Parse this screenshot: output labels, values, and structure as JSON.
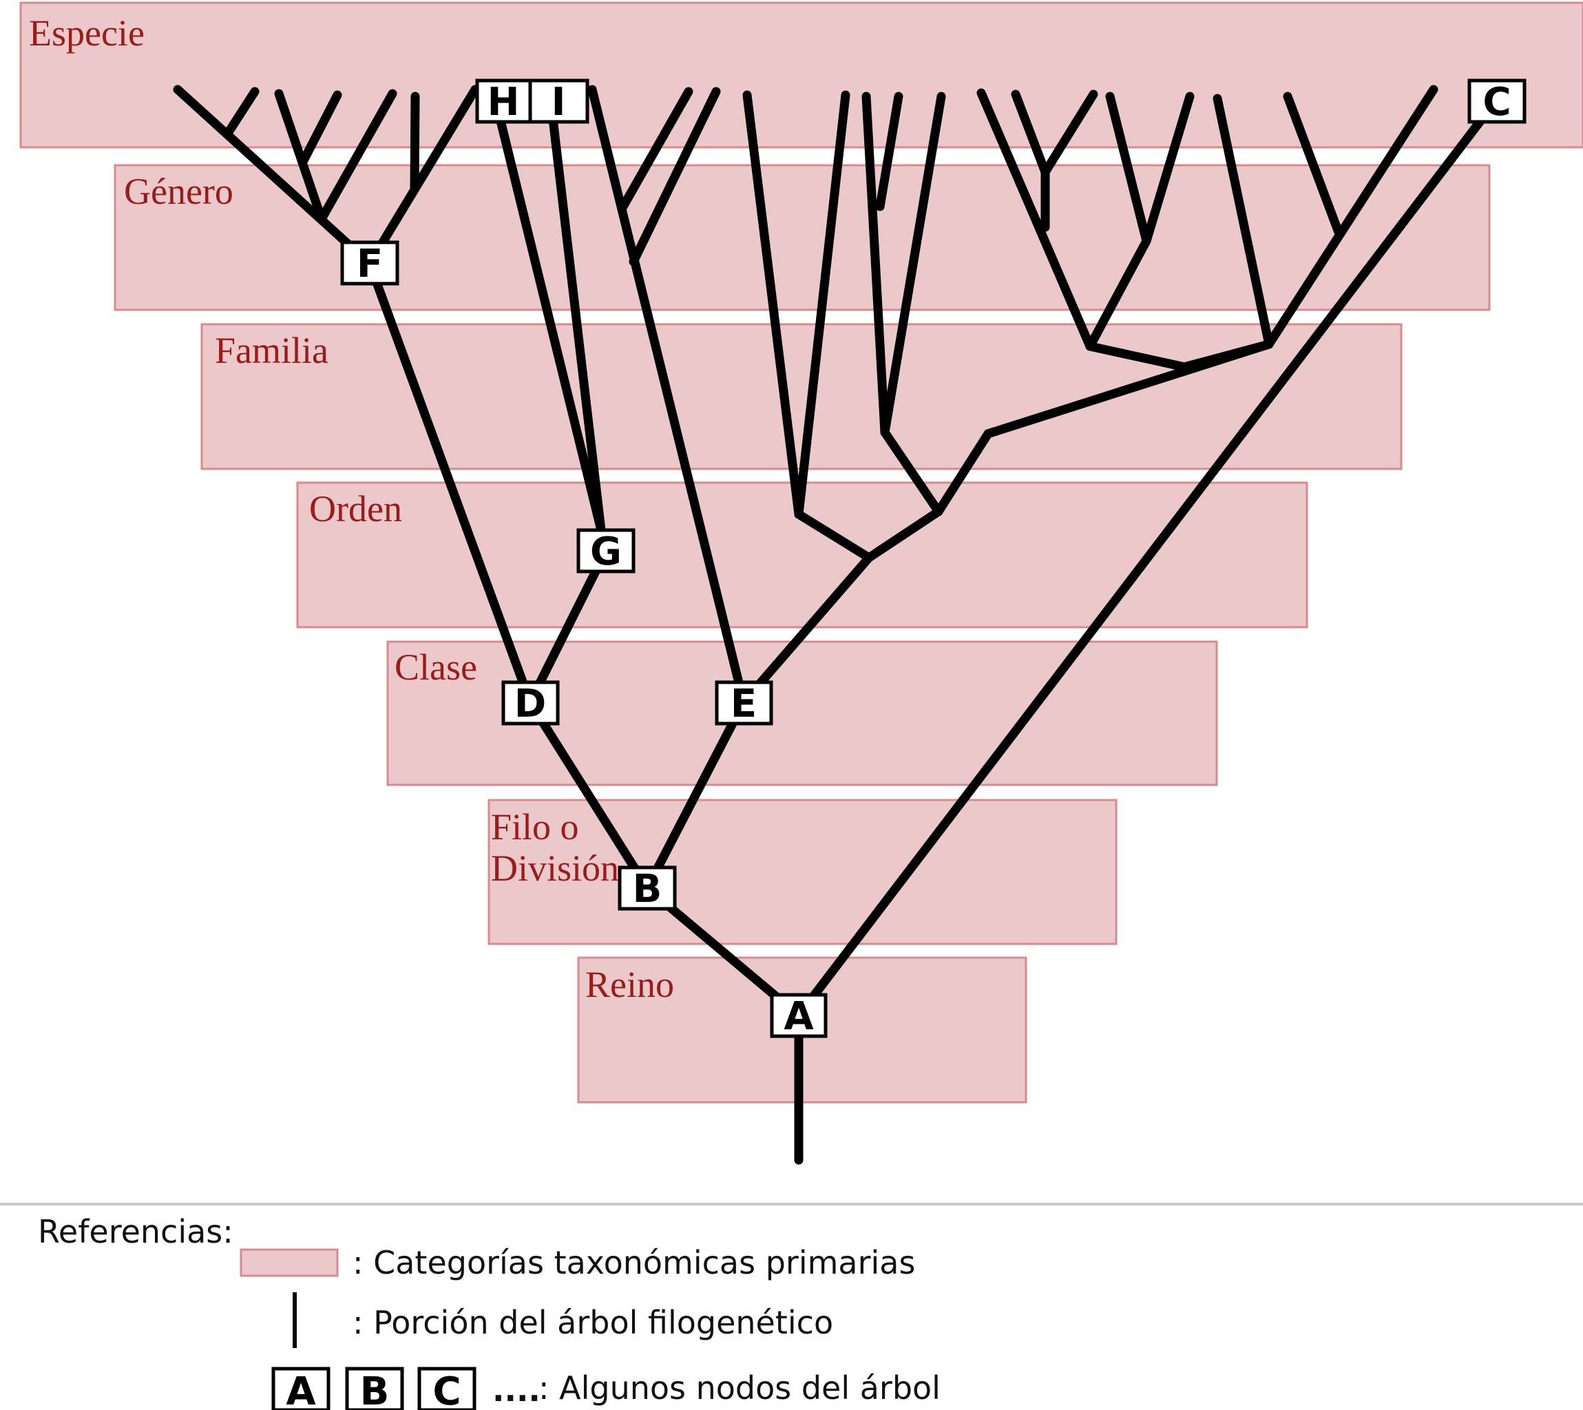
{
  "categories": [
    {
      "id": "especie",
      "label": "Especie"
    },
    {
      "id": "genero",
      "label": "Género"
    },
    {
      "id": "familia",
      "label": "Familia"
    },
    {
      "id": "orden",
      "label": "Orden"
    },
    {
      "id": "clase",
      "label": "Clase"
    },
    {
      "id": "filo",
      "label_line1": "Filo o",
      "label_line2": "División"
    },
    {
      "id": "reino",
      "label": "Reino"
    }
  ],
  "nodes": [
    "A",
    "B",
    "C",
    "D",
    "E",
    "F",
    "G",
    "H",
    "I"
  ],
  "legend": {
    "title": "Referencias:",
    "band_text": ": Categorías taxonómicas primarias",
    "line_text": ": Porción del árbol filogenético",
    "nodes_text": ": Algunos nodos del árbol",
    "sample_nodes": [
      "A",
      "B",
      "C"
    ],
    "ellipsis": "...."
  },
  "colors": {
    "band_fill": "#ebc8ca",
    "band_stroke": "#d98a8e",
    "label": "#9b1b1b",
    "edge": "#000000"
  }
}
